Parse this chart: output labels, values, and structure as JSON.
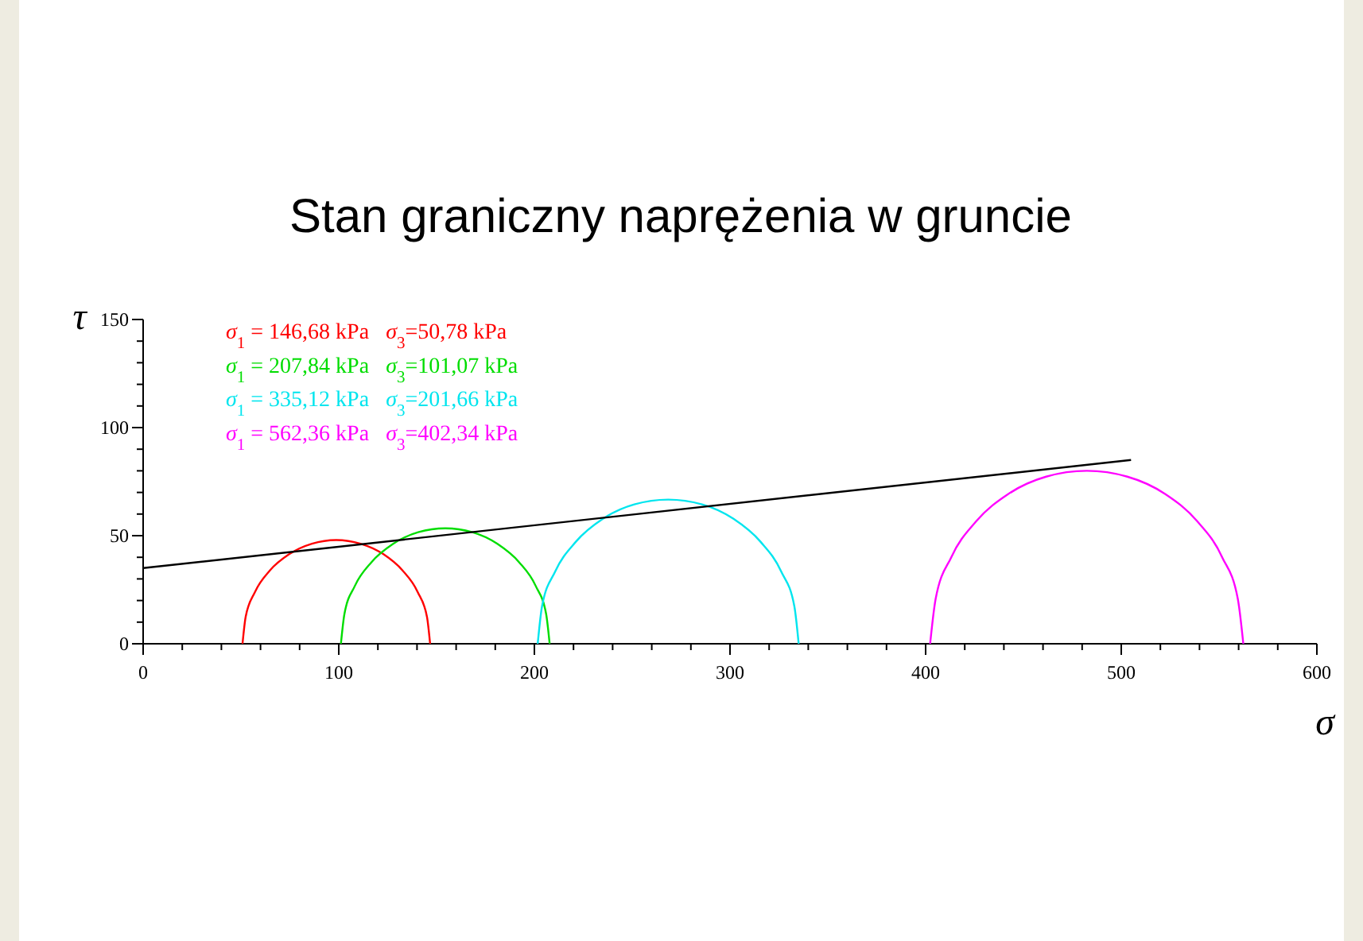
{
  "chart_data": {
    "type": "line",
    "title": "Stan graniczny naprężenia w gruncie",
    "xlabel": "σ",
    "ylabel": "τ",
    "xlim": [
      0,
      600
    ],
    "ylim": [
      0,
      150
    ],
    "xticks": [
      0,
      {
        "value": 20,
        "label": null
      },
      {
        "value": 40,
        "label": null
      },
      {
        "value": 60,
        "label": null
      },
      {
        "value": 80,
        "label": null
      },
      100,
      {
        "value": 120,
        "label": null
      },
      {
        "value": 140,
        "label": null
      },
      {
        "value": 160,
        "label": null
      },
      {
        "value": 180,
        "label": null
      },
      200,
      {
        "value": 220,
        "label": null
      },
      {
        "value": 240,
        "label": null
      },
      {
        "value": 260,
        "label": null
      },
      {
        "value": 280,
        "label": null
      },
      300,
      {
        "value": 320,
        "label": null
      },
      {
        "value": 340,
        "label": null
      },
      {
        "value": 360,
        "label": null
      },
      {
        "value": 380,
        "label": null
      },
      400,
      {
        "value": 420,
        "label": null
      },
      {
        "value": 440,
        "label": null
      },
      {
        "value": 460,
        "label": null
      },
      {
        "value": 480,
        "label": null
      },
      500,
      {
        "value": 520,
        "label": null
      },
      {
        "value": 540,
        "label": null
      },
      {
        "value": 560,
        "label": null
      },
      {
        "value": 580,
        "label": null
      },
      600
    ],
    "yticks": [
      0,
      {
        "value": 10,
        "label": null
      },
      {
        "value": 20,
        "label": null
      },
      {
        "value": 30,
        "label": null
      },
      {
        "value": 40,
        "label": null
      },
      50,
      {
        "value": 60,
        "label": null
      },
      {
        "value": 70,
        "label": null
      },
      {
        "value": 80,
        "label": null
      },
      {
        "value": 90,
        "label": null
      },
      100,
      {
        "value": 110,
        "label": null
      },
      {
        "value": 120,
        "label": null
      },
      {
        "value": 130,
        "label": null
      },
      {
        "value": 140,
        "label": null
      },
      150
    ],
    "grid": false,
    "legend": "top left",
    "marker": "none",
    "line_style": "solid",
    "series": [
      {
        "name": "σ$_{1}$ = 146,68 kPa   σ$_{3}$=50,78 kPa",
        "color": "#ff0000",
        "x": [
          50.8,
          52.4,
          57.2,
          64.8,
          74.8,
          86.3,
          98.7,
          111.1,
          122.7,
          132.6,
          140.3,
          145.1,
          146.7
        ],
        "values": [
          0,
          12.4,
          24.0,
          33.9,
          41.5,
          46.3,
          48.0,
          46.3,
          41.5,
          33.9,
          24.0,
          12.4,
          0
        ]
      },
      {
        "name": "σ$_{1}$ = 207,84 kPa   σ$_{3}$=101,07 kPa",
        "color": "#00dd00",
        "x": [
          101.1,
          102.9,
          108.2,
          116.7,
          127.8,
          140.6,
          154.5,
          168.3,
          181.1,
          192.2,
          200.7,
          206.0,
          207.8
        ],
        "values": [
          0,
          13.8,
          26.7,
          37.7,
          46.2,
          51.6,
          53.4,
          51.6,
          46.2,
          37.7,
          26.7,
          13.8,
          0
        ]
      },
      {
        "name": "σ$_{1}$ = 335,12 kPa   σ$_{3}$=201,66 kPa",
        "color": "#00e5ee",
        "x": [
          201.7,
          203.9,
          210.6,
          221.2,
          235.0,
          251.1,
          268.4,
          285.7,
          301.8,
          315.6,
          326.2,
          332.9,
          335.1
        ],
        "values": [
          0,
          17.3,
          33.4,
          47.2,
          57.8,
          64.5,
          66.7,
          64.5,
          57.8,
          47.2,
          33.4,
          17.3,
          0
        ]
      },
      {
        "name": "σ$_{1}$ = 562,36 kPa   σ$_{3}$=402,34 kPa",
        "color": "#ff00ff",
        "x": [
          402.3,
          405.1,
          413.1,
          425.8,
          442.3,
          461.6,
          482.4,
          503.1,
          522.4,
          538.9,
          551.6,
          559.6,
          562.4
        ],
        "values": [
          0,
          20.7,
          40.0,
          56.6,
          69.3,
          77.3,
          80.0,
          77.3,
          69.3,
          56.6,
          40.0,
          20.7,
          0
        ]
      },
      {
        "color": "#000000",
        "x": [
          0,
          505
        ],
        "values": [
          35,
          85
        ]
      }
    ]
  }
}
